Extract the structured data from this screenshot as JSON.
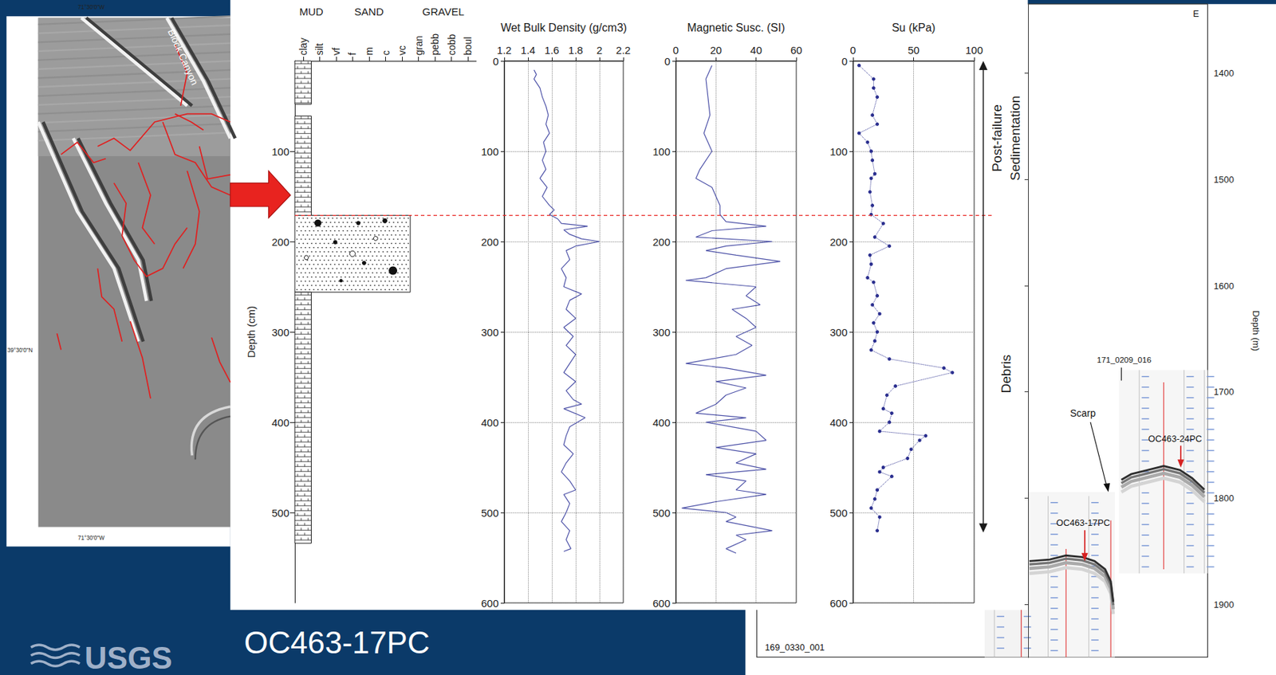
{
  "title": "OC463-17PC",
  "logo": "USGS",
  "map": {
    "labels": {
      "top": "71°30'0\"W",
      "bottom": "71°30'0\"W",
      "left": "39°30'0\"N",
      "canyon": "Block Canyon"
    }
  },
  "chart_data": [
    {
      "type": "lithology",
      "y_label": "Depth (cm)",
      "categories": [
        "clay",
        "silt",
        "vf",
        "f",
        "m",
        "c",
        "vc",
        "gran",
        "pebb",
        "cobb",
        "boul"
      ],
      "grain_groups": [
        {
          "label": "MUD",
          "from": "clay",
          "to": "silt"
        },
        {
          "label": "SAND",
          "from": "vf",
          "to": "vc"
        },
        {
          "label": "GRAVEL",
          "from": "gran",
          "to": "boul"
        }
      ],
      "intervals": [
        {
          "top": 0,
          "bottom": 48,
          "grain": "clay"
        },
        {
          "top": 61,
          "bottom": 171,
          "grain": "clay"
        },
        {
          "top": 171,
          "bottom": 256,
          "grain": "vc"
        },
        {
          "top": 256,
          "bottom": 534,
          "grain": "clay"
        }
      ],
      "ylim": [
        0,
        600
      ],
      "yticks": [
        100,
        200,
        300,
        400,
        500
      ]
    },
    {
      "type": "line",
      "title": "Wet Bulk Density (g/cm3)",
      "color": "#4a4fa6",
      "x": [
        1.45,
        1.47,
        1.45,
        1.5,
        1.52,
        1.55,
        1.57,
        1.55,
        1.58,
        1.53,
        1.55,
        1.52,
        1.55,
        1.5,
        1.56,
        1.52,
        1.58,
        1.62,
        1.58,
        1.65,
        1.68,
        1.9,
        1.7,
        1.75,
        1.85,
        2,
        1.8,
        1.72,
        1.75,
        1.68,
        1.72,
        1.7,
        1.85,
        1.75,
        1.72,
        1.8,
        1.7,
        1.78,
        1.72,
        1.8,
        1.75,
        1.7,
        1.8,
        1.72,
        1.78,
        1.85,
        1.7,
        1.88,
        1.75,
        1.72,
        1.7,
        1.78,
        1.72,
        1.68,
        1.75,
        1.8,
        1.7,
        1.75,
        1.72,
        1.68,
        1.75,
        1.72,
        1.76,
        1.7
      ],
      "y": [
        10,
        15,
        20,
        30,
        40,
        50,
        60,
        70,
        80,
        90,
        100,
        110,
        120,
        130,
        140,
        150,
        160,
        165,
        170,
        175,
        180,
        183,
        187,
        192,
        197,
        200,
        205,
        210,
        220,
        230,
        240,
        250,
        258,
        265,
        275,
        285,
        295,
        305,
        315,
        325,
        335,
        345,
        355,
        365,
        375,
        380,
        385,
        395,
        405,
        415,
        425,
        435,
        445,
        455,
        465,
        475,
        480,
        490,
        500,
        510,
        520,
        530,
        540,
        543
      ],
      "xlim": [
        1.2,
        2.2
      ],
      "xticks": [
        1.2,
        1.4,
        1.6,
        1.8,
        2,
        2.2
      ],
      "ylim": [
        0,
        600
      ],
      "yticks": [
        0,
        100,
        200,
        300,
        400,
        500,
        600
      ],
      "grid": true
    },
    {
      "type": "line",
      "title": "Magnetic Susc. (SI)",
      "color": "#4a4fa6",
      "x": [
        18,
        15,
        16,
        17,
        14,
        18,
        12,
        10,
        18,
        20,
        22,
        22,
        25,
        45,
        18,
        10,
        48,
        25,
        15,
        30,
        52,
        25,
        15,
        5,
        40,
        35,
        42,
        28,
        35,
        40,
        30,
        38,
        30,
        5,
        25,
        45,
        20,
        35,
        25,
        20,
        10,
        35,
        15,
        40,
        45,
        20,
        40,
        30,
        45,
        15,
        35,
        30,
        45,
        20,
        3,
        25,
        30,
        25,
        48,
        30,
        35,
        25,
        30
      ],
      "y": [
        5,
        20,
        40,
        60,
        80,
        100,
        120,
        130,
        140,
        150,
        160,
        170,
        178,
        183,
        188,
        195,
        200,
        205,
        210,
        215,
        222,
        230,
        240,
        243,
        250,
        260,
        270,
        275,
        285,
        295,
        305,
        315,
        325,
        335,
        340,
        348,
        355,
        362,
        370,
        380,
        390,
        395,
        400,
        410,
        420,
        428,
        435,
        445,
        452,
        458,
        465,
        475,
        480,
        488,
        495,
        500,
        505,
        510,
        520,
        525,
        530,
        540,
        545
      ],
      "xlim": [
        0,
        60
      ],
      "xticks": [
        0,
        20,
        40,
        60
      ],
      "ylim": [
        0,
        600
      ],
      "yticks": [
        0,
        100,
        200,
        300,
        400,
        500,
        600
      ],
      "grid": true
    },
    {
      "type": "scatter",
      "title": "Su (kPa)",
      "color": "#2b2f8f",
      "marker": "circle",
      "line_style": "dotted",
      "x": [
        5,
        17,
        17,
        20,
        16,
        20,
        5,
        12,
        15,
        16,
        18,
        15,
        14,
        16,
        15,
        25,
        18,
        30,
        14,
        15,
        12,
        17,
        20,
        16,
        22,
        17,
        20,
        18,
        15,
        30,
        75,
        82,
        35,
        28,
        25,
        32,
        30,
        22,
        60,
        55,
        48,
        45,
        25,
        22,
        32,
        20,
        18,
        15,
        22,
        20
      ],
      "y": [
        5,
        20,
        30,
        40,
        60,
        70,
        80,
        90,
        100,
        110,
        125,
        130,
        145,
        160,
        170,
        180,
        195,
        205,
        215,
        225,
        240,
        245,
        260,
        270,
        280,
        290,
        300,
        310,
        320,
        330,
        340,
        345,
        360,
        370,
        385,
        390,
        400,
        410,
        415,
        420,
        430,
        440,
        450,
        455,
        460,
        475,
        485,
        495,
        505,
        520
      ],
      "xlim": [
        0,
        100
      ],
      "xticks": [
        0,
        50,
        100
      ],
      "ylim": [
        0,
        600
      ],
      "yticks": [
        0,
        100,
        200,
        300,
        400,
        500,
        600
      ],
      "grid": true
    }
  ],
  "annotations": {
    "zones": [
      {
        "label": "Post-failure Sedimentation",
        "from": 0,
        "to": 171
      },
      {
        "label": "Debris",
        "from": 171,
        "to": 522
      }
    ]
  },
  "profile": {
    "y_label": "Depth (m)",
    "ylim": [
      1335,
      1950
    ],
    "yticks": [
      1400,
      1500,
      1600,
      1700,
      1800,
      1900
    ],
    "labels": {
      "direction": "E",
      "line_upper": "171_0209_016",
      "line_lower": "169_0330_001",
      "scarp": "Scarp",
      "core_upper": "OC463-24PC",
      "core_lower": "OC463-17PC"
    }
  }
}
